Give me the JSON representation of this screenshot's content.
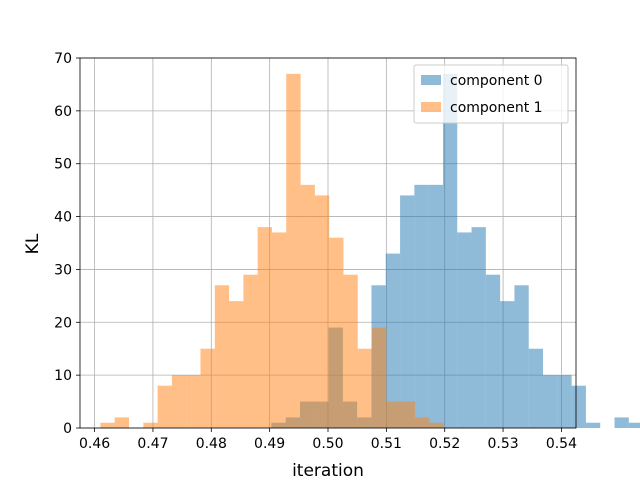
{
  "chart_data": {
    "type": "histogram",
    "xlabel": "iteration",
    "ylabel": "KL",
    "xlim": [
      0.4575,
      0.5425
    ],
    "ylim": [
      0,
      70
    ],
    "xticks": [
      0.46,
      0.47,
      0.48,
      0.49,
      0.5,
      0.51,
      0.52,
      0.53,
      0.54
    ],
    "xtick_labels": [
      "0.46",
      "0.47",
      "0.48",
      "0.49",
      "0.50",
      "0.51",
      "0.52",
      "0.53",
      "0.54"
    ],
    "yticks": [
      0,
      10,
      20,
      30,
      40,
      50,
      60,
      70
    ],
    "ytick_labels": [
      "0",
      "10",
      "20",
      "30",
      "40",
      "50",
      "60",
      "70"
    ],
    "grid": true,
    "legend_position": "top-right",
    "series": [
      {
        "name": "component 0",
        "color": "#1f77b4",
        "alpha": 0.5,
        "bin_start": 0.4903,
        "bin_width": 0.00245,
        "values": [
          1,
          2,
          5,
          5,
          19,
          5,
          2,
          27,
          33,
          44,
          46,
          46,
          67,
          37,
          38,
          29,
          24,
          27,
          15,
          10,
          10,
          8,
          1,
          0,
          2,
          1
        ]
      },
      {
        "name": "component 1",
        "color": "#ff7f0e",
        "alpha": 0.5,
        "bin_start": 0.461,
        "bin_width": 0.00245,
        "values": [
          1,
          2,
          0,
          1,
          8,
          10,
          10,
          15,
          27,
          24,
          29,
          38,
          37,
          67,
          46,
          44,
          36,
          29,
          15,
          19,
          5,
          5,
          2,
          1
        ]
      }
    ]
  }
}
